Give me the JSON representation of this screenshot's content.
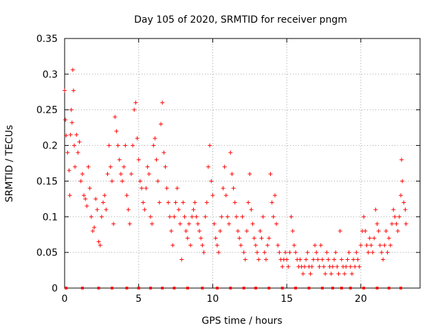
{
  "chart_data": {
    "type": "scatter",
    "title": "Day 105 of 2020, SRMTID for receiver pngm",
    "xlabel": "GPS time / hours",
    "ylabel": "SRMTID / TECUs",
    "xlim": [
      0,
      24
    ],
    "ylim": [
      0,
      0.35
    ],
    "xticks": [
      0,
      5,
      10,
      15,
      20
    ],
    "xtick_labels": [
      "0",
      "5",
      "10",
      "15",
      "20"
    ],
    "yticks": [
      0,
      0.05,
      0.1,
      0.15,
      0.2,
      0.25,
      0.3,
      0.35
    ],
    "ytick_labels": [
      "0",
      "0.05",
      "0.1",
      "0.15",
      "0.2",
      "0.25",
      "0.3",
      "0.35"
    ],
    "grid": true,
    "marker": "+",
    "color": "#ff0000",
    "series": [
      {
        "name": "SRMTID",
        "points": [
          [
            0.0,
            0.277
          ],
          [
            0.05,
            0.236
          ],
          [
            0.1,
            0.214
          ],
          [
            0.2,
            0.19
          ],
          [
            0.3,
            0.165
          ],
          [
            0.35,
            0.13
          ],
          [
            0.4,
            0.215
          ],
          [
            0.45,
            0.25
          ],
          [
            0.5,
            0.232
          ],
          [
            0.55,
            0.306
          ],
          [
            0.6,
            0.277
          ],
          [
            0.65,
            0.2
          ],
          [
            0.7,
            0.17
          ],
          [
            0.8,
            0.215
          ],
          [
            0.9,
            0.19
          ],
          [
            1.0,
            0.205
          ],
          [
            1.1,
            0.15
          ],
          [
            1.2,
            0.16
          ],
          [
            1.3,
            0.13
          ],
          [
            1.4,
            0.125
          ],
          [
            1.5,
            0.115
          ],
          [
            1.6,
            0.17
          ],
          [
            1.7,
            0.14
          ],
          [
            1.8,
            0.1
          ],
          [
            1.9,
            0.08
          ],
          [
            2.0,
            0.085
          ],
          [
            2.1,
            0.125
          ],
          [
            2.2,
            0.11
          ],
          [
            2.3,
            0.065
          ],
          [
            2.4,
            0.06
          ],
          [
            2.5,
            0.1
          ],
          [
            2.6,
            0.12
          ],
          [
            2.7,
            0.13
          ],
          [
            2.8,
            0.11
          ],
          [
            2.9,
            0.16
          ],
          [
            3.0,
            0.2
          ],
          [
            3.1,
            0.17
          ],
          [
            3.2,
            0.15
          ],
          [
            3.3,
            0.09
          ],
          [
            3.4,
            0.24
          ],
          [
            3.5,
            0.22
          ],
          [
            3.6,
            0.2
          ],
          [
            3.7,
            0.18
          ],
          [
            3.8,
            0.16
          ],
          [
            3.9,
            0.15
          ],
          [
            4.0,
            0.17
          ],
          [
            4.1,
            0.2
          ],
          [
            4.2,
            0.13
          ],
          [
            4.3,
            0.11
          ],
          [
            4.4,
            0.09
          ],
          [
            4.5,
            0.16
          ],
          [
            4.6,
            0.2
          ],
          [
            4.7,
            0.25
          ],
          [
            4.8,
            0.26
          ],
          [
            4.9,
            0.21
          ],
          [
            5.0,
            0.18
          ],
          [
            5.1,
            0.15
          ],
          [
            5.2,
            0.14
          ],
          [
            5.3,
            0.12
          ],
          [
            5.4,
            0.11
          ],
          [
            5.5,
            0.14
          ],
          [
            5.6,
            0.17
          ],
          [
            5.7,
            0.16
          ],
          [
            5.8,
            0.1
          ],
          [
            5.9,
            0.09
          ],
          [
            6.0,
            0.2
          ],
          [
            6.1,
            0.21
          ],
          [
            6.2,
            0.18
          ],
          [
            6.3,
            0.15
          ],
          [
            6.4,
            0.12
          ],
          [
            6.5,
            0.23
          ],
          [
            6.6,
            0.26
          ],
          [
            6.7,
            0.19
          ],
          [
            6.8,
            0.17
          ],
          [
            6.9,
            0.14
          ],
          [
            7.0,
            0.12
          ],
          [
            7.1,
            0.1
          ],
          [
            7.2,
            0.08
          ],
          [
            7.3,
            0.06
          ],
          [
            7.4,
            0.1
          ],
          [
            7.5,
            0.12
          ],
          [
            7.6,
            0.14
          ],
          [
            7.7,
            0.11
          ],
          [
            7.8,
            0.09
          ],
          [
            7.9,
            0.04
          ],
          [
            8.0,
            0.12
          ],
          [
            8.1,
            0.1
          ],
          [
            8.2,
            0.08
          ],
          [
            8.3,
            0.07
          ],
          [
            8.4,
            0.09
          ],
          [
            8.5,
            0.06
          ],
          [
            8.6,
            0.1
          ],
          [
            8.7,
            0.11
          ],
          [
            8.8,
            0.12
          ],
          [
            8.9,
            0.1
          ],
          [
            9.0,
            0.09
          ],
          [
            9.1,
            0.08
          ],
          [
            9.2,
            0.07
          ],
          [
            9.3,
            0.06
          ],
          [
            9.4,
            0.05
          ],
          [
            9.5,
            0.1
          ],
          [
            9.6,
            0.12
          ],
          [
            9.7,
            0.17
          ],
          [
            9.8,
            0.2
          ],
          [
            9.9,
            0.15
          ],
          [
            10.0,
            0.13
          ],
          [
            10.1,
            0.09
          ],
          [
            10.2,
            0.07
          ],
          [
            10.3,
            0.06
          ],
          [
            10.4,
            0.05
          ],
          [
            10.5,
            0.08
          ],
          [
            10.6,
            0.1
          ],
          [
            10.7,
            0.14
          ],
          [
            10.8,
            0.17
          ],
          [
            10.9,
            0.13
          ],
          [
            11.0,
            0.1
          ],
          [
            11.1,
            0.09
          ],
          [
            11.2,
            0.19
          ],
          [
            11.3,
            0.16
          ],
          [
            11.4,
            0.14
          ],
          [
            11.5,
            0.12
          ],
          [
            11.6,
            0.1
          ],
          [
            11.7,
            0.08
          ],
          [
            11.8,
            0.07
          ],
          [
            11.9,
            0.06
          ],
          [
            12.0,
            0.1
          ],
          [
            12.1,
            0.05
          ],
          [
            12.2,
            0.04
          ],
          [
            12.3,
            0.08
          ],
          [
            12.4,
            0.12
          ],
          [
            12.5,
            0.16
          ],
          [
            12.6,
            0.11
          ],
          [
            12.7,
            0.09
          ],
          [
            12.8,
            0.07
          ],
          [
            12.9,
            0.06
          ],
          [
            13.0,
            0.05
          ],
          [
            13.1,
            0.04
          ],
          [
            13.2,
            0.08
          ],
          [
            13.3,
            0.07
          ],
          [
            13.4,
            0.1
          ],
          [
            13.5,
            0.05
          ],
          [
            13.6,
            0.04
          ],
          [
            13.7,
            0.06
          ],
          [
            13.8,
            0.07
          ],
          [
            13.9,
            0.16
          ],
          [
            14.0,
            0.12
          ],
          [
            14.1,
            0.1
          ],
          [
            14.2,
            0.13
          ],
          [
            14.3,
            0.09
          ],
          [
            14.4,
            0.06
          ],
          [
            14.5,
            0.05
          ],
          [
            14.6,
            0.04
          ],
          [
            14.7,
            0.03
          ],
          [
            14.8,
            0.04
          ],
          [
            14.9,
            0.05
          ],
          [
            15.0,
            0.04
          ],
          [
            15.1,
            0.03
          ],
          [
            15.2,
            0.05
          ],
          [
            15.3,
            0.1
          ],
          [
            15.4,
            0.08
          ],
          [
            15.5,
            0.06
          ],
          [
            15.6,
            0.05
          ],
          [
            15.7,
            0.04
          ],
          [
            15.8,
            0.03
          ],
          [
            15.9,
            0.04
          ],
          [
            16.0,
            0.03
          ],
          [
            16.1,
            0.02
          ],
          [
            16.2,
            0.03
          ],
          [
            16.3,
            0.04
          ],
          [
            16.4,
            0.05
          ],
          [
            16.5,
            0.03
          ],
          [
            16.6,
            0.02
          ],
          [
            16.7,
            0.03
          ],
          [
            16.8,
            0.04
          ],
          [
            16.9,
            0.06
          ],
          [
            17.0,
            0.05
          ],
          [
            17.1,
            0.04
          ],
          [
            17.2,
            0.03
          ],
          [
            17.3,
            0.06
          ],
          [
            17.4,
            0.04
          ],
          [
            17.5,
            0.03
          ],
          [
            17.6,
            0.02
          ],
          [
            17.7,
            0.05
          ],
          [
            17.8,
            0.04
          ],
          [
            17.9,
            0.03
          ],
          [
            18.0,
            0.02
          ],
          [
            18.1,
            0.03
          ],
          [
            18.2,
            0.04
          ],
          [
            18.3,
            0.05
          ],
          [
            18.4,
            0.03
          ],
          [
            18.5,
            0.02
          ],
          [
            18.6,
            0.08
          ],
          [
            18.7,
            0.04
          ],
          [
            18.8,
            0.03
          ],
          [
            18.9,
            0.02
          ],
          [
            19.0,
            0.03
          ],
          [
            19.1,
            0.04
          ],
          [
            19.2,
            0.05
          ],
          [
            19.3,
            0.03
          ],
          [
            19.4,
            0.02
          ],
          [
            19.5,
            0.04
          ],
          [
            19.6,
            0.03
          ],
          [
            19.7,
            0.05
          ],
          [
            19.8,
            0.04
          ],
          [
            19.9,
            0.03
          ],
          [
            20.0,
            0.06
          ],
          [
            20.1,
            0.08
          ],
          [
            20.2,
            0.1
          ],
          [
            20.3,
            0.08
          ],
          [
            20.4,
            0.06
          ],
          [
            20.5,
            0.05
          ],
          [
            20.6,
            0.07
          ],
          [
            20.7,
            0.06
          ],
          [
            20.8,
            0.05
          ],
          [
            20.9,
            0.07
          ],
          [
            21.0,
            0.11
          ],
          [
            21.1,
            0.09
          ],
          [
            21.2,
            0.08
          ],
          [
            21.3,
            0.06
          ],
          [
            21.4,
            0.05
          ],
          [
            21.5,
            0.04
          ],
          [
            21.6,
            0.06
          ],
          [
            21.7,
            0.08
          ],
          [
            21.8,
            0.05
          ],
          [
            21.9,
            0.07
          ],
          [
            22.0,
            0.06
          ],
          [
            22.1,
            0.09
          ],
          [
            22.2,
            0.11
          ],
          [
            22.3,
            0.1
          ],
          [
            22.4,
            0.09
          ],
          [
            22.5,
            0.08
          ],
          [
            22.6,
            0.1
          ],
          [
            22.7,
            0.13
          ],
          [
            22.75,
            0.18
          ],
          [
            22.8,
            0.15
          ],
          [
            22.9,
            0.12
          ],
          [
            23.0,
            0.11
          ],
          [
            23.05,
            0.09
          ]
        ]
      }
    ],
    "baseline_markers": {
      "y": 0,
      "x": [
        0.1,
        1.2,
        2.3,
        3.2,
        4.2,
        5.0,
        5.8,
        6.6,
        7.4,
        8.3,
        9.3,
        10.3,
        11.2,
        12.1,
        12.9,
        13.8,
        14.7,
        15.6,
        16.5,
        17.4,
        18.1,
        18.7,
        19.3,
        20.2,
        21.1,
        21.9,
        22.7
      ]
    }
  }
}
